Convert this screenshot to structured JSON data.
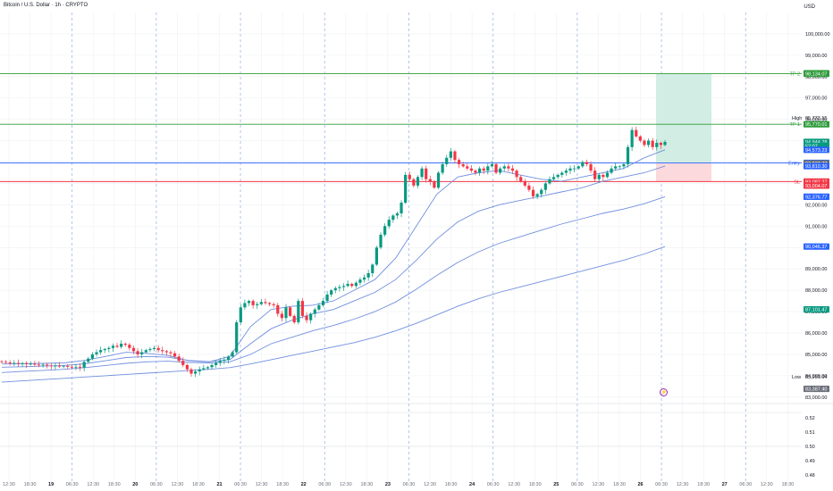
{
  "header": {
    "symbol_title": "Bitcoin / U.S. Dollar · 1h · CRYPTO",
    "currency": "USD"
  },
  "colors": {
    "up": "#089981",
    "down": "#f23645",
    "ma": "#6f8fdf",
    "tp": "#2e9c3a",
    "entry": "#2962ff",
    "sl": "#f23645",
    "profit_zone": "#d2ede3",
    "loss_zone": "#fbd9dd",
    "grid": "#eef0f3",
    "session_line": "#9fb6e8"
  },
  "chart_data": [
    {
      "type": "candlestick",
      "title": "Bitcoin / U.S. Dollar · 1h · CRYPTO",
      "unit": "USD",
      "ylim": [
        82700,
        101000
      ],
      "y_ticks": [
        "100,000.00",
        "99,000.00",
        "98,000.00",
        "97,000.00",
        "96,000.00",
        "95,000.00",
        "94,000.00",
        "93,000.00",
        "92,000.00",
        "91,000.00",
        "90,000.00",
        "89,000.00",
        "88,000.00",
        "87,000.00",
        "86,000.00",
        "85,000.00",
        "84,000.00",
        "83,000.00"
      ],
      "x_ticks": [
        "12:30",
        "18:30",
        "19",
        "06:30",
        "12:30",
        "18:30",
        "20",
        "06:30",
        "12:30",
        "18:30",
        "21",
        "06:30",
        "12:30",
        "18:30",
        "22",
        "06:30",
        "12:30",
        "18:30",
        "23",
        "06:30",
        "12:30",
        "18:30",
        "24",
        "06:30",
        "12:30",
        "18:30",
        "25",
        "06:30",
        "12:30",
        "18:30",
        "26",
        "06:30",
        "12:30",
        "18:30",
        "27",
        "06:30",
        "12:30",
        "18:30"
      ],
      "closes": [
        84650,
        84620,
        84580,
        84600,
        84570,
        84590,
        84540,
        84560,
        84520,
        84500,
        84520,
        84480,
        84450,
        84470,
        84430,
        84460,
        84420,
        84400,
        84420,
        84380,
        84650,
        84800,
        85000,
        85100,
        85200,
        85250,
        85300,
        85400,
        85350,
        85500,
        85450,
        85300,
        85150,
        85000,
        85100,
        85200,
        85250,
        85300,
        85200,
        85150,
        85100,
        85050,
        84900,
        84700,
        84500,
        84300,
        84100,
        84200,
        84300,
        84350,
        84400,
        84500,
        84600,
        84700,
        84750,
        84900,
        85100,
        86500,
        87200,
        87400,
        87500,
        87300,
        87350,
        87450,
        87400,
        87350,
        87300,
        86900,
        86700,
        87200,
        86800,
        86500,
        87500,
        86800,
        86600,
        86900,
        87100,
        87300,
        87500,
        87800,
        88000,
        88100,
        88150,
        88200,
        88300,
        88200,
        88350,
        88500,
        88600,
        88800,
        89200,
        90000,
        90600,
        91000,
        91300,
        91500,
        91600,
        92100,
        93400,
        93200,
        92900,
        93300,
        93700,
        93200,
        93100,
        92800,
        93500,
        93900,
        94200,
        94500,
        94100,
        93900,
        93800,
        93700,
        93600,
        93500,
        93700,
        93600,
        93800,
        93900,
        93500,
        93700,
        93800,
        93700,
        93600,
        93300,
        93100,
        92900,
        92700,
        92400,
        92500,
        92700,
        93000,
        93200,
        93300,
        93400,
        93500,
        93600,
        93700,
        93700,
        93800,
        94000,
        93900,
        93600,
        93200,
        93400,
        93300,
        93500,
        93700,
        93800,
        93800,
        93900,
        94700,
        95500,
        95200,
        95000,
        94800,
        95000,
        94700,
        94900,
        94800,
        94944.78
      ],
      "series": [
        {
          "name": "",
          "values": []
        }
      ],
      "moving_averages": [
        {
          "values": [
            84550,
            84560,
            84580,
            84600,
            84720,
            84900,
            85100,
            85050,
            84950,
            84700,
            84650,
            84900,
            86300,
            87100,
            87250,
            87300,
            87500,
            88000,
            88500,
            89500,
            91000,
            92500,
            93300,
            93500,
            93600,
            93400,
            93200,
            93100,
            93300,
            93500,
            93700,
            94200,
            94573.23
          ]
        },
        {
          "values": [
            84400,
            84420,
            84450,
            84480,
            84560,
            84700,
            84850,
            84900,
            84870,
            84720,
            84660,
            84750,
            85500,
            86200,
            86600,
            86900,
            87100,
            87500,
            87900,
            88500,
            89400,
            90400,
            91200,
            91700,
            92000,
            92200,
            92400,
            92600,
            92800,
            93100,
            93300,
            93500,
            93810.3
          ]
        },
        {
          "values": [
            84150,
            84200,
            84250,
            84300,
            84380,
            84480,
            84580,
            84650,
            84680,
            84620,
            84600,
            84650,
            85000,
            85500,
            85800,
            86100,
            86350,
            86650,
            87000,
            87450,
            88050,
            88700,
            89300,
            89800,
            90200,
            90500,
            90800,
            91100,
            91350,
            91600,
            91800,
            92050,
            92376.77
          ]
        },
        {
          "values": [
            83700,
            83760,
            83820,
            83880,
            83940,
            84000,
            84060,
            84120,
            84180,
            84240,
            84300,
            84380,
            84550,
            84750,
            84950,
            85150,
            85350,
            85550,
            85800,
            86100,
            86450,
            86850,
            87250,
            87600,
            87900,
            88150,
            88400,
            88650,
            88900,
            89150,
            89400,
            89700,
            90046.37
          ]
        }
      ],
      "levels": [
        {
          "label": "TP 2",
          "price": 98134.07,
          "price_label": "98,134.07",
          "kind": "tp"
        },
        {
          "label": "TP 1",
          "price": 95770.01,
          "price_label": "95,770.01",
          "kind": "tp"
        },
        {
          "label": "Entry",
          "price": 93963.21,
          "price_label": "93,963.21",
          "kind": "entry"
        },
        {
          "label": "SL",
          "price": 93087.27,
          "price_label": "93,087.27",
          "kind": "sl"
        }
      ],
      "price_badges": [
        {
          "text": "98,154.57",
          "price": 98154.57,
          "bg": "#2e9c3a",
          "fg": "#ffffff"
        },
        {
          "text": "98,134.07",
          "price": 98134.07,
          "bg": "#2e9c3a",
          "fg": "#ffffff"
        },
        {
          "text": "95,770.01",
          "price": 95770.01,
          "bg": "#2e9c3a",
          "fg": "#ffffff"
        },
        {
          "text": "94,944.78",
          "price": 94944.78,
          "bg": "#089981",
          "fg": "#ffffff"
        },
        {
          "text": "52:07",
          "price": 94760,
          "bg": "#089981",
          "fg": "#ffffff"
        },
        {
          "text": "94,573.23",
          "price": 94573.23,
          "bg": "#2962ff",
          "fg": "#ffffff"
        },
        {
          "text": "93,963.21",
          "price": 93963.21,
          "bg": "#2962ff",
          "fg": "#ffffff"
        },
        {
          "text": "93,933.77",
          "price": 93933.77,
          "bg": "#6b6f7a",
          "fg": "#ffffff"
        },
        {
          "text": "93,810.30",
          "price": 93810.3,
          "bg": "#2962ff",
          "fg": "#ffffff"
        },
        {
          "text": "93,087.27",
          "price": 93087.27,
          "bg": "#f23645",
          "fg": "#ffffff"
        },
        {
          "text": "93,004.07",
          "price": 92900,
          "bg": "#f23645",
          "fg": "#ffffff"
        },
        {
          "text": "92,376.77",
          "price": 92376.77,
          "bg": "#2962ff",
          "fg": "#ffffff"
        },
        {
          "text": "90,046.37",
          "price": 90046.37,
          "bg": "#2962ff",
          "fg": "#ffffff"
        },
        {
          "text": "87,101.47",
          "price": 87101.47,
          "bg": "#089981",
          "fg": "#ffffff"
        },
        {
          "text": "83,387.40",
          "price": 83387.4,
          "bg": "#6b6f7a",
          "fg": "#ffffff"
        }
      ],
      "high": {
        "label": "High",
        "price": 95773.15,
        "price_label": "95,773.15"
      },
      "low": {
        "label": "Low",
        "price": 83951.04,
        "price_label": "83,951.04"
      },
      "position": {
        "entry": 93963.21,
        "take_profit": 98134.07,
        "stop_loss": 93087.27
      }
    },
    {
      "type": "line",
      "title": "",
      "ylim": [
        0.475,
        0.53
      ],
      "y_ticks": [
        "0.52",
        "0.51",
        "0.50",
        "0.49",
        "0.48"
      ],
      "reference_lines": [
        0.5237,
        0.5
      ]
    }
  ]
}
